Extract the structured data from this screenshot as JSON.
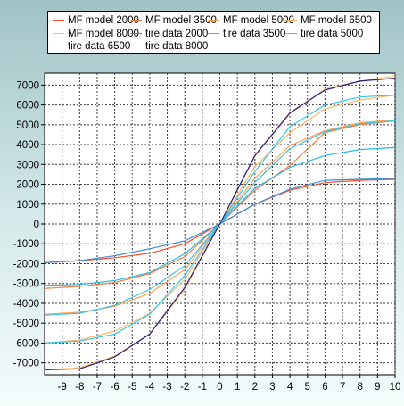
{
  "colors": {
    "series_2000": "#ff4b2b",
    "series_3500": "#ff7a3d",
    "series_5000": "#ffa050",
    "series_6500": "#ffb866",
    "series_8000": "#ffc27a",
    "tire_2000": "#3b8fd8",
    "tire_3500": "#25bde8",
    "tire_5000": "#3ac4e8",
    "tire_6500": "#39c6ea",
    "tire_8000": "#2a1a7a",
    "grid": "#3a3a3a",
    "plot_bg": "#ffffff"
  },
  "chart_data": {
    "type": "line",
    "xlim": [
      -10,
      10
    ],
    "ylim": [
      -7600,
      7600
    ],
    "x_ticks": [
      -9,
      -8,
      -7,
      -6,
      -5,
      -4,
      -3,
      -2,
      -1,
      0,
      1,
      2,
      3,
      4,
      5,
      6,
      7,
      8,
      9,
      10
    ],
    "x_tick_labels": [
      "-9",
      "-8",
      "-7",
      "-6",
      "-5",
      "-4",
      "-3",
      "-2",
      "-1",
      "0",
      "1",
      "2",
      "3",
      "4",
      "5",
      "6",
      "7",
      "8",
      "9",
      "10"
    ],
    "y_ticks": [
      -7000,
      -6000,
      -5000,
      -4000,
      -3000,
      -2000,
      -1000,
      0,
      1000,
      2000,
      3000,
      4000,
      5000,
      6000,
      7000
    ],
    "y_tick_labels": [
      "-7000",
      "-6000",
      "-5000",
      "-4000",
      "-3000",
      "-2000",
      "-1000",
      "0",
      "1000",
      "2000",
      "3000",
      "4000",
      "5000",
      "6000",
      "7000"
    ],
    "grid": true,
    "legend_position": "top",
    "series": [
      {
        "name": "MF model 2000",
        "color_key": "series_2000",
        "x": [
          -10,
          -8,
          -6,
          -4,
          -2,
          0,
          2,
          4,
          6,
          8,
          10
        ],
        "values": [
          -1950,
          -1850,
          -1700,
          -1480,
          -1000,
          0,
          1000,
          1700,
          2080,
          2200,
          2250
        ]
      },
      {
        "name": "MF model 3500",
        "color_key": "series_3500",
        "x": [
          -10,
          -8,
          -6,
          -4,
          -2,
          0,
          2,
          4,
          6,
          8,
          10
        ],
        "values": [
          -3250,
          -3150,
          -2950,
          -2500,
          -1650,
          0,
          1700,
          2950,
          4600,
          5000,
          5200
        ]
      },
      {
        "name": "MF model 5000",
        "color_key": "series_5000",
        "x": [
          -10,
          -8,
          -6,
          -4,
          -2,
          0,
          2,
          4,
          6,
          8,
          10
        ],
        "values": [
          -4550,
          -4450,
          -4150,
          -3500,
          -2300,
          0,
          2300,
          3950,
          4700,
          5100,
          5250
        ]
      },
      {
        "name": "MF model 6500",
        "color_key": "series_6500",
        "x": [
          -10,
          -8,
          -6,
          -4,
          -2,
          0,
          2,
          4,
          6,
          8,
          10
        ],
        "values": [
          -6000,
          -5850,
          -5400,
          -4500,
          -2800,
          0,
          2900,
          4600,
          5800,
          6250,
          6500
        ]
      },
      {
        "name": "MF model 8000",
        "color_key": "series_8000",
        "x": [
          -10,
          -8,
          -6,
          -4,
          -2,
          0,
          2,
          4,
          6,
          8,
          10
        ],
        "values": [
          -7350,
          -7250,
          -6650,
          -5550,
          -3300,
          0,
          3400,
          5550,
          6800,
          7200,
          7450
        ]
      },
      {
        "name": "tire data 2000",
        "color_key": "tire_2000",
        "x": [
          -10,
          -8,
          -6,
          -4,
          -2,
          0,
          2,
          4,
          6,
          8,
          10
        ],
        "values": [
          -1950,
          -1850,
          -1600,
          -1250,
          -850,
          0,
          1000,
          1750,
          2200,
          2250,
          2300
        ]
      },
      {
        "name": "tire data 3500",
        "color_key": "tire_3500",
        "x": [
          -10,
          -8,
          -6,
          -4,
          -2,
          0,
          2,
          4,
          6,
          8,
          10
        ],
        "values": [
          -3100,
          -3050,
          -2850,
          -2450,
          -1500,
          0,
          1800,
          2850,
          3450,
          3750,
          3850
        ]
      },
      {
        "name": "tire data 5000",
        "color_key": "tire_5000",
        "x": [
          -10,
          -8,
          -6,
          -4,
          -2,
          0,
          2,
          4,
          6,
          8,
          10
        ],
        "values": [
          -4600,
          -4500,
          -4100,
          -3300,
          -2100,
          0,
          2100,
          3800,
          4650,
          5050,
          5200
        ]
      },
      {
        "name": "tire data 6500",
        "color_key": "tire_6500",
        "x": [
          -10,
          -8,
          -6,
          -4,
          -2,
          0,
          2,
          4,
          6,
          8,
          10
        ],
        "values": [
          -6000,
          -5900,
          -5550,
          -4550,
          -2600,
          0,
          2650,
          4900,
          6000,
          6400,
          6500
        ]
      },
      {
        "name": "tire data 8000",
        "color_key": "tire_8000",
        "x": [
          -10,
          -8,
          -6,
          -4,
          -2,
          0,
          2,
          4,
          6,
          8,
          10
        ],
        "values": [
          -7350,
          -7300,
          -6700,
          -5550,
          -3200,
          0,
          3450,
          5600,
          6750,
          7200,
          7350
        ]
      }
    ]
  }
}
